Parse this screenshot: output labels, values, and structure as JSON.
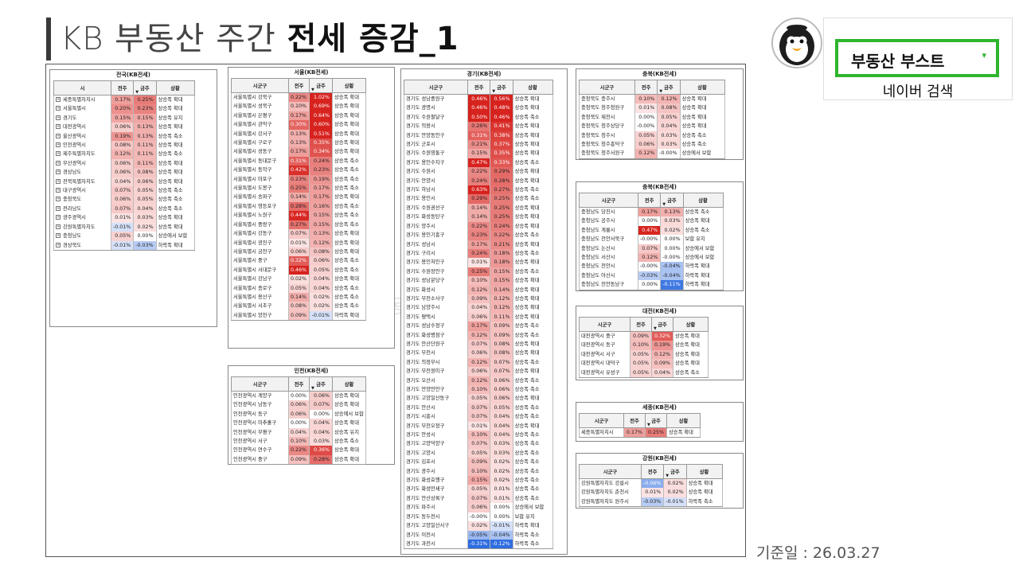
{
  "header": {
    "title_light": "KB 부동산 주간 ",
    "title_bold": "전세 증감_1",
    "date": "기준일 : 26.03.27",
    "watermark": "부동산 부스트"
  },
  "brand": {
    "label": "부동산 부스트",
    "caret": "▾",
    "search_label": "네이버 검색",
    "accent": "#2fb52f",
    "avatar_icon": "penguin-icon"
  },
  "colors": {
    "up_strong": "#d9241e",
    "up_weak": "#fbe3e2",
    "down_strong": "#2f6de0",
    "down_weak": "#e4ecfb"
  },
  "panels": [
    {
      "key": "nation",
      "title": "전국(KB전세)",
      "name_header": "시",
      "expand": true,
      "col1": "전주",
      "col2": "금주",
      "col3": "상황",
      "rows": [
        [
          "세종특별자치시",
          "0.17%",
          "0.25%",
          "상승폭 확대"
        ],
        [
          "서울특별시",
          "0.20%",
          "0.23%",
          "상승폭 확대"
        ],
        [
          "경기도",
          "0.15%",
          "0.15%",
          "상승폭 유지"
        ],
        [
          "대전광역시",
          "0.06%",
          "0.13%",
          "상승폭 확대"
        ],
        [
          "울산광역시",
          "0.19%",
          "0.13%",
          "상승폭 축소"
        ],
        [
          "인천광역시",
          "0.08%",
          "0.11%",
          "상승폭 확대"
        ],
        [
          "제주특별자치도",
          "0.12%",
          "0.11%",
          "상승폭 축소"
        ],
        [
          "부산광역시",
          "0.06%",
          "0.11%",
          "상승폭 확대"
        ],
        [
          "경상남도",
          "0.06%",
          "0.08%",
          "상승폭 확대"
        ],
        [
          "전북특별자치도",
          "0.04%",
          "0.06%",
          "상승폭 확대"
        ],
        [
          "대구광역시",
          "0.07%",
          "0.05%",
          "상승폭 축소"
        ],
        [
          "충청북도",
          "0.06%",
          "0.05%",
          "상승폭 축소"
        ],
        [
          "전라남도",
          "0.07%",
          "0.04%",
          "상승폭 축소"
        ],
        [
          "광주광역시",
          "0.01%",
          "0.03%",
          "상승폭 확대"
        ],
        [
          "강원특별자치도",
          "-0.01%",
          "0.02%",
          "상승폭 확대"
        ],
        [
          "충청남도",
          "0.05%",
          "0.00%",
          "상승에서 보합"
        ],
        [
          "경상북도",
          "-0.01%",
          "-0.03%",
          "하락폭 확대"
        ]
      ]
    },
    {
      "key": "seoul",
      "title": "서울(KB전세)",
      "name_header": "시군구",
      "expand": false,
      "col1": "전주",
      "col2": "금주",
      "col3": "상황",
      "rows": [
        [
          "서울특별시 강북구",
          "0.22%",
          "1.02%",
          "상승폭 확대"
        ],
        [
          "서울특별시 성북구",
          "0.10%",
          "0.69%",
          "상승폭 확대"
        ],
        [
          "서울특별시 은평구",
          "0.17%",
          "0.64%",
          "상승폭 확대"
        ],
        [
          "서울특별시 관악구",
          "0.30%",
          "0.60%",
          "상승폭 확대"
        ],
        [
          "서울특별시 강서구",
          "0.13%",
          "0.51%",
          "상승폭 확대"
        ],
        [
          "서울특별시 구로구",
          "0.13%",
          "0.35%",
          "상승폭 확대"
        ],
        [
          "서울특별시 성동구",
          "0.17%",
          "0.34%",
          "상승폭 확대"
        ],
        [
          "서울특별시 동대문구",
          "0.31%",
          "0.24%",
          "상승폭 축소"
        ],
        [
          "서울특별시 동작구",
          "0.42%",
          "0.23%",
          "상승폭 축소"
        ],
        [
          "서울특별시 마포구",
          "0.23%",
          "0.19%",
          "상승폭 축소"
        ],
        [
          "서울특별시 도봉구",
          "0.25%",
          "0.17%",
          "상승폭 축소"
        ],
        [
          "서울특별시 송파구",
          "0.14%",
          "0.17%",
          "상승폭 확대"
        ],
        [
          "서울특별시 영등포구",
          "0.28%",
          "0.16%",
          "상승폭 축소"
        ],
        [
          "서울특별시 노원구",
          "0.44%",
          "0.15%",
          "상승폭 축소"
        ],
        [
          "서울특별시 중랑구",
          "0.27%",
          "0.15%",
          "상승폭 축소"
        ],
        [
          "서울특별시 강동구",
          "0.07%",
          "0.13%",
          "상승폭 확대"
        ],
        [
          "서울특별시 광진구",
          "0.01%",
          "0.12%",
          "상승폭 확대"
        ],
        [
          "서울특별시 금천구",
          "0.06%",
          "0.08%",
          "상승폭 확대"
        ],
        [
          "서울특별시 중구",
          "0.32%",
          "0.06%",
          "상승폭 축소"
        ],
        [
          "서울특별시 서대문구",
          "0.46%",
          "0.05%",
          "상승폭 축소"
        ],
        [
          "서울특별시 강남구",
          "0.02%",
          "0.04%",
          "상승폭 확대"
        ],
        [
          "서울특별시 종로구",
          "0.05%",
          "0.04%",
          "상승폭 축소"
        ],
        [
          "서울특별시 용산구",
          "0.14%",
          "0.02%",
          "상승폭 축소"
        ],
        [
          "서울특별시 서초구",
          "0.08%",
          "0.02%",
          "상승폭 축소"
        ],
        [
          "서울특별시 양천구",
          "0.09%",
          "-0.01%",
          "하락폭 확대"
        ]
      ]
    },
    {
      "key": "incheon",
      "title": "인천(KB전세)",
      "name_header": "시군구",
      "expand": false,
      "col1": "전주",
      "col2": "금주",
      "col3": "상황",
      "rows": [
        [
          "인천광역시 계양구",
          "0.00%",
          "0.06%",
          "상승폭 확대"
        ],
        [
          "인천광역시 남동구",
          "0.06%",
          "0.07%",
          "상승폭 확대"
        ],
        [
          "인천광역시 동구",
          "0.06%",
          "0.00%",
          "상승에서 보합"
        ],
        [
          "인천광역시 미추홀구",
          "0.00%",
          "0.04%",
          "상승폭 확대"
        ],
        [
          "인천광역시 부평구",
          "0.04%",
          "0.04%",
          "상승폭 유지"
        ],
        [
          "인천광역시 서구",
          "0.10%",
          "0.03%",
          "상승폭 축소"
        ],
        [
          "인천광역시 연수구",
          "0.22%",
          "0.36%",
          "상승폭 확대"
        ],
        [
          "인천광역시 중구",
          "0.09%",
          "0.28%",
          "상승폭 확대"
        ]
      ]
    },
    {
      "key": "gyeonggi",
      "title": "경기(KB전세)",
      "name_header": "시군구",
      "expand": false,
      "col1": "전주",
      "col2": "금주",
      "col3": "상황",
      "rows": [
        [
          "경기도 성남중원구",
          "0.46%",
          "0.56%",
          "상승폭 확대"
        ],
        [
          "경기도 광명시",
          "0.46%",
          "0.48%",
          "상승폭 확대"
        ],
        [
          "경기도 수원팔달구",
          "0.50%",
          "0.46%",
          "상승폭 축소"
        ],
        [
          "경기도 의왕시",
          "0.26%",
          "0.41%",
          "상승폭 확대"
        ],
        [
          "경기도 안양동안구",
          "0.31%",
          "0.38%",
          "상승폭 확대"
        ],
        [
          "경기도 군포시",
          "0.21%",
          "0.37%",
          "상승폭 확대"
        ],
        [
          "경기도 수원영통구",
          "0.15%",
          "0.35%",
          "상승폭 확대"
        ],
        [
          "경기도 용인수지구",
          "0.47%",
          "0.33%",
          "상승폭 축소"
        ],
        [
          "경기도 수원시",
          "0.22%",
          "0.29%",
          "상승폭 확대"
        ],
        [
          "경기도 안양시",
          "0.24%",
          "0.28%",
          "상승폭 확대"
        ],
        [
          "경기도 하남시",
          "0.63%",
          "0.27%",
          "상승폭 축소"
        ],
        [
          "경기도 용인시",
          "0.29%",
          "0.25%",
          "상승폭 축소"
        ],
        [
          "경기도 수원권선구",
          "0.14%",
          "0.25%",
          "상승폭 확대"
        ],
        [
          "경기도 화성동탄구",
          "0.14%",
          "0.25%",
          "상승폭 확대"
        ],
        [
          "경기도 양주시",
          "0.22%",
          "0.24%",
          "상승폭 확대"
        ],
        [
          "경기도 용인기흥구",
          "0.23%",
          "0.22%",
          "상승폭 축소"
        ],
        [
          "경기도 성남시",
          "0.17%",
          "0.21%",
          "상승폭 확대"
        ],
        [
          "경기도 구리시",
          "0.24%",
          "0.18%",
          "상승폭 축소"
        ],
        [
          "경기도 용인처인구",
          "0.01%",
          "0.18%",
          "상승폭 확대"
        ],
        [
          "경기도 수원장안구",
          "0.25%",
          "0.15%",
          "상승폭 축소"
        ],
        [
          "경기도 성남분당구",
          "0.10%",
          "0.15%",
          "상승폭 확대"
        ],
        [
          "경기도 화성시",
          "0.12%",
          "0.14%",
          "상승폭 확대"
        ],
        [
          "경기도 부천소사구",
          "0.09%",
          "0.12%",
          "상승폭 확대"
        ],
        [
          "경기도 남양주시",
          "0.04%",
          "0.12%",
          "상승폭 확대"
        ],
        [
          "경기도 평택시",
          "0.06%",
          "0.11%",
          "상승폭 확대"
        ],
        [
          "경기도 성남수정구",
          "0.17%",
          "0.09%",
          "상승폭 축소"
        ],
        [
          "경기도 화성병점구",
          "0.12%",
          "0.09%",
          "상승폭 축소"
        ],
        [
          "경기도 안산단원구",
          "0.07%",
          "0.08%",
          "상승폭 확대"
        ],
        [
          "경기도 부천시",
          "0.06%",
          "0.08%",
          "상승폭 확대"
        ],
        [
          "경기도 의정부시",
          "0.12%",
          "0.07%",
          "상승폭 축소"
        ],
        [
          "경기도 부천원미구",
          "0.06%",
          "0.07%",
          "상승폭 확대"
        ],
        [
          "경기도 오산시",
          "0.12%",
          "0.06%",
          "상승폭 축소"
        ],
        [
          "경기도 안양만안구",
          "0.10%",
          "0.06%",
          "상승폭 축소"
        ],
        [
          "경기도 고양일산동구",
          "0.05%",
          "0.06%",
          "상승폭 확대"
        ],
        [
          "경기도 안산시",
          "0.07%",
          "0.05%",
          "상승폭 축소"
        ],
        [
          "경기도 시흥시",
          "0.07%",
          "0.04%",
          "상승폭 축소"
        ],
        [
          "경기도 부천오정구",
          "0.01%",
          "0.04%",
          "상승폭 확대"
        ],
        [
          "경기도 안성시",
          "0.10%",
          "0.04%",
          "상승폭 축소"
        ],
        [
          "경기도 고양덕양구",
          "0.07%",
          "0.03%",
          "상승폭 축소"
        ],
        [
          "경기도 고양시",
          "0.05%",
          "0.03%",
          "상승폭 축소"
        ],
        [
          "경기도 김포시",
          "0.09%",
          "0.02%",
          "상승폭 축소"
        ],
        [
          "경기도 광주시",
          "0.10%",
          "0.02%",
          "상승폭 축소"
        ],
        [
          "경기도 화성효행구",
          "0.15%",
          "0.02%",
          "상승폭 축소"
        ],
        [
          "경기도 화성만세구",
          "0.05%",
          "0.01%",
          "상승폭 축소"
        ],
        [
          "경기도 안산상록구",
          "0.07%",
          "0.01%",
          "상승폭 축소"
        ],
        [
          "경기도 파주시",
          "0.06%",
          "0.00%",
          "상승에서 보합"
        ],
        [
          "경기도 동두천시",
          "-0.00%",
          "0.00%",
          "보합 유지"
        ],
        [
          "경기도 고양일산서구",
          "0.02%",
          "-0.01%",
          "하락폭 확대"
        ],
        [
          "경기도 이천시",
          "-0.05%",
          "-0.04%",
          "하락폭 축소"
        ],
        [
          "경기도 과천시",
          "-0.31%",
          "-0.12%",
          "하락폭 축소"
        ]
      ]
    },
    {
      "key": "chungbuk",
      "title": "충북(KB전세)",
      "name_header": "시군구",
      "expand": false,
      "col1": "전주",
      "col2": "금주",
      "col3": "상황",
      "rows": [
        [
          "충청북도 충주시",
          "0.10%",
          "0.12%",
          "상승폭 확대"
        ],
        [
          "충청북도 청주청원구",
          "0.01%",
          "0.08%",
          "상승폭 확대"
        ],
        [
          "충청북도 제천시",
          "0.00%",
          "0.05%",
          "상승폭 확대"
        ],
        [
          "충청북도 청주상당구",
          "-0.00%",
          "0.04%",
          "상승폭 확대"
        ],
        [
          "충청북도 청주시",
          "0.05%",
          "0.03%",
          "상승폭 축소"
        ],
        [
          "충청북도 청주흥덕구",
          "0.06%",
          "0.03%",
          "상승폭 축소"
        ],
        [
          "충청북도 청주서원구",
          "0.12%",
          "-0.00%",
          "상승에서 보합"
        ]
      ]
    },
    {
      "key": "chungnam",
      "title": "충북(KB전세)",
      "name_header": "시군구",
      "expand": false,
      "col1": "전주",
      "col2": "금주",
      "col3": "상황",
      "rows": [
        [
          "충청남도 당진시",
          "0.17%",
          "0.13%",
          "상승폭 축소"
        ],
        [
          "충청남도 공주시",
          "0.00%",
          "0.03%",
          "상승폭 확대"
        ],
        [
          "충청남도 계룡시",
          "0.47%",
          "0.02%",
          "상승폭 축소"
        ],
        [
          "충청남도 천안서북구",
          "-0.00%",
          "0.00%",
          "보합 유지"
        ],
        [
          "충청남도 논산시",
          "0.07%",
          "0.00%",
          "상승에서 보합"
        ],
        [
          "충청남도 서산시",
          "0.12%",
          "-0.00%",
          "상승에서 보합"
        ],
        [
          "충청남도 천안시",
          "-0.00%",
          "-0.04%",
          "하락폭 확대"
        ],
        [
          "충청남도 아산시",
          "-0.03%",
          "-0.04%",
          "하락폭 확대"
        ],
        [
          "충청남도 천안동남구",
          "0.00%",
          "-0.11%",
          "하락폭 확대"
        ]
      ]
    },
    {
      "key": "daejeon",
      "title": "대전(KB전세)",
      "name_header": "시군구",
      "expand": false,
      "col1": "전주",
      "col2": "금주",
      "col3": "상황",
      "rows": [
        [
          "대전광역시 중구",
          "0.09%",
          "0.32%",
          "상승폭 확대"
        ],
        [
          "대전광역시 동구",
          "0.10%",
          "0.19%",
          "상승폭 확대"
        ],
        [
          "대전광역시 서구",
          "0.05%",
          "0.12%",
          "상승폭 확대"
        ],
        [
          "대전광역시 대덕구",
          "0.05%",
          "0.09%",
          "상승폭 확대"
        ],
        [
          "대전광역시 유성구",
          "0.05%",
          "0.04%",
          "상승폭 축소"
        ]
      ]
    },
    {
      "key": "sejong",
      "title": "세종(KB전세)",
      "name_header": "시군구",
      "expand": false,
      "col1": "전주",
      "col2": "금주",
      "col3": "상황",
      "rows": [
        [
          "세종특별자치시",
          "0.17%",
          "0.25%",
          "상승폭 확대"
        ]
      ]
    },
    {
      "key": "gangwon",
      "title": "강원(KB전세)",
      "name_header": "시군구",
      "expand": false,
      "col1": "전주",
      "col2": "금주",
      "col3": "상황",
      "rows": [
        [
          "강원특별자치도 강릉시",
          "-0.06%",
          "0.02%",
          "상승폭 확대"
        ],
        [
          "강원특별자치도 춘천시",
          "0.01%",
          "0.02%",
          "상승폭 확대"
        ],
        [
          "강원특별자치도 원주시",
          "-0.03%",
          "-0.01%",
          "하락폭 축소"
        ]
      ]
    }
  ]
}
